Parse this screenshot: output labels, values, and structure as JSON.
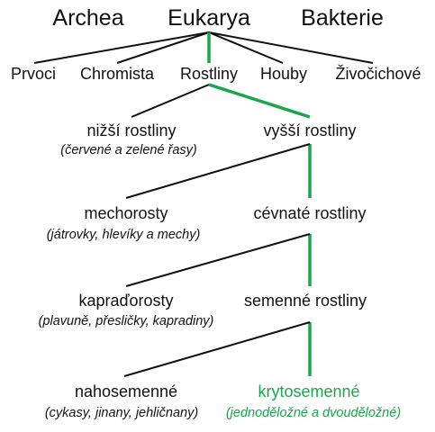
{
  "colors": {
    "text": "#111111",
    "line": "#111111",
    "highlight": "#1aa64b"
  },
  "top": {
    "archea": "Archea",
    "eukarya": "Eukarya",
    "bakterie": "Bakterie"
  },
  "kingdoms": {
    "prvoci": "Prvoci",
    "chromista": "Chromista",
    "rostliny": "Rostliny",
    "houby": "Houby",
    "zivocichove": "Živočichové"
  },
  "levels": [
    {
      "left": {
        "name": "nižší rostliny",
        "note": "(červené a zelené řasy)"
      },
      "right": {
        "name": "vyšší rostliny",
        "note": ""
      }
    },
    {
      "left": {
        "name": "mechorosty",
        "note": "(játrovky, hlevíky a mechy)"
      },
      "right": {
        "name": "cévnaté rostliny",
        "note": ""
      }
    },
    {
      "left": {
        "name": "kapraďorosty",
        "note": "(plavuně, přesličky, kapradiny)"
      },
      "right": {
        "name": "semenné rostliny",
        "note": ""
      }
    },
    {
      "left": {
        "name": "nahosemenné",
        "note": "(cykasy, jinany, jehličnany)"
      },
      "right": {
        "name": "krytosemenné",
        "note": "(jednoděložné a dvouděložné)"
      }
    }
  ]
}
